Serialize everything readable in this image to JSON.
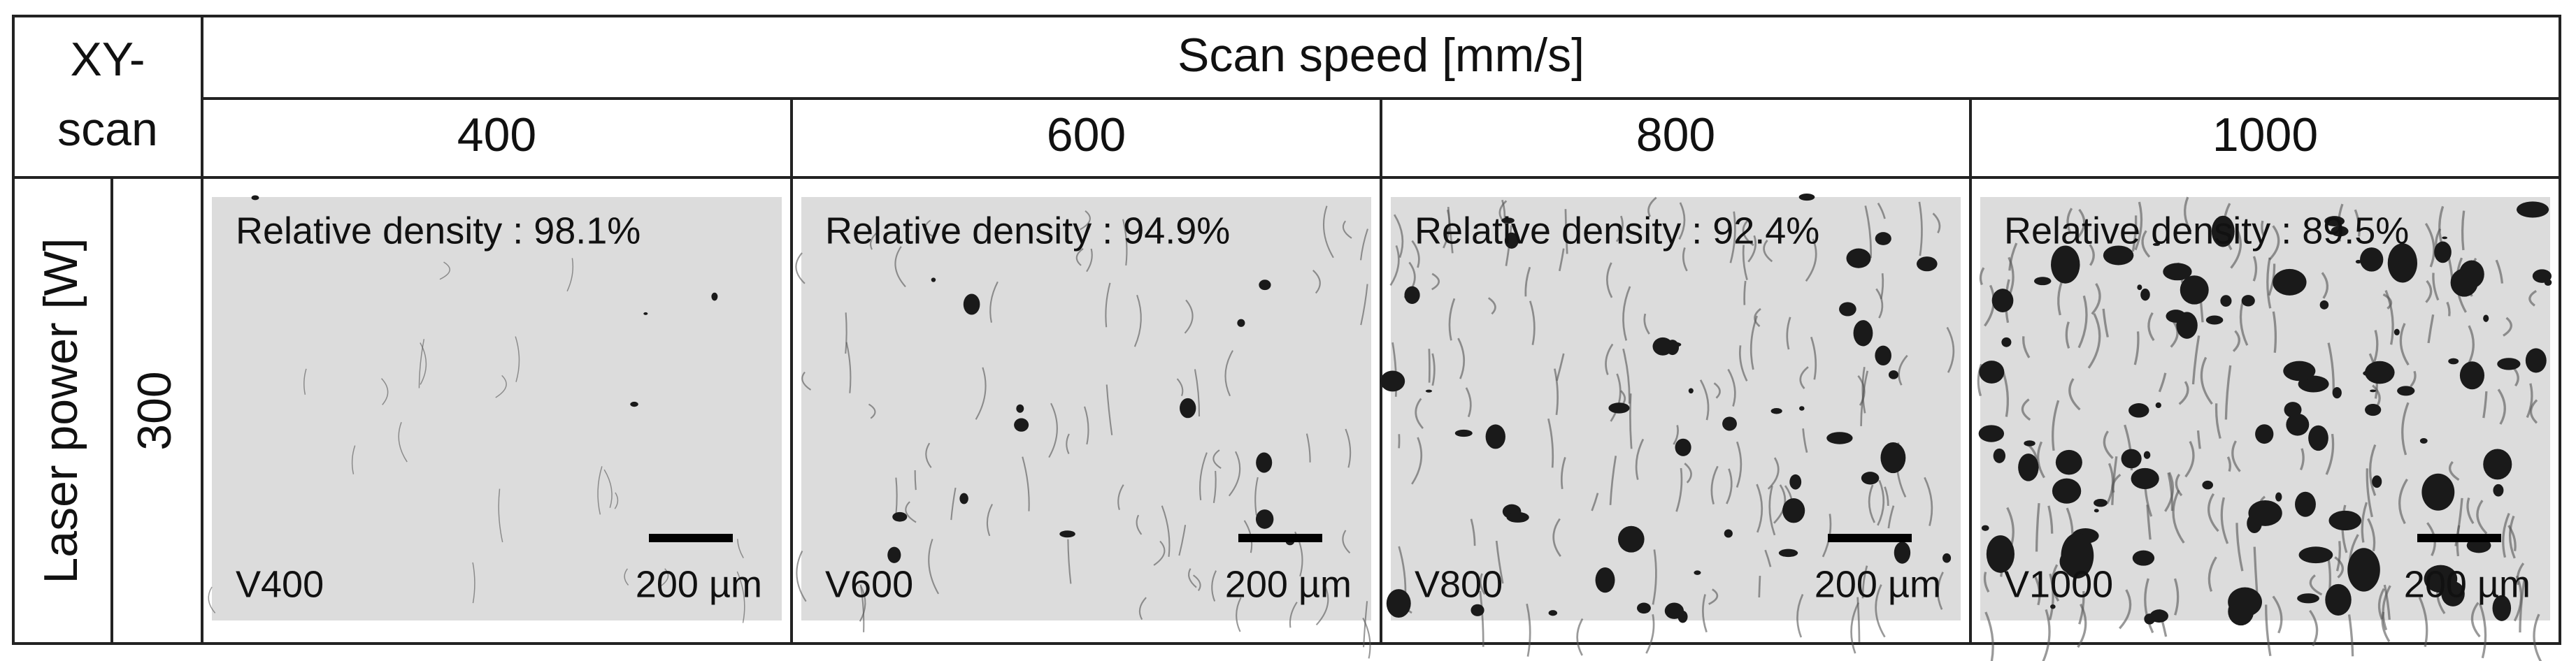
{
  "corner_label": [
    "XY-",
    "scan"
  ],
  "column_header": "Scan speed [mm/s]",
  "columns": [
    "400",
    "600",
    "800",
    "1000"
  ],
  "row_header": "Laser power [W]",
  "rows": [
    {
      "label": "300",
      "cells": [
        {
          "density": "Relative density : 98.1%",
          "sample": "V400",
          "scale_bar": "200 µm"
        },
        {
          "density": "Relative density : 94.9%",
          "sample": "V600",
          "scale_bar": "200 µm"
        },
        {
          "density": "Relative density : 92.4%",
          "sample": "V800",
          "scale_bar": "200 µm"
        },
        {
          "density": "Relative density : 89.5%",
          "sample": "V1000",
          "scale_bar": "200 µm"
        }
      ]
    }
  ]
}
